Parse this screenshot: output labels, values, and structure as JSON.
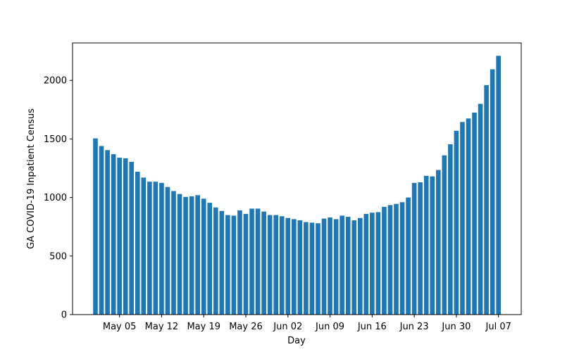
{
  "chart_data": {
    "type": "bar",
    "title": "",
    "xlabel": "Day",
    "ylabel": "GA COVID-19 Inpatient Census",
    "ylim": [
      0,
      2320
    ],
    "yticks": [
      0,
      500,
      1000,
      1500,
      2000
    ],
    "grid": false,
    "bar_color": "#1f77b4",
    "x_start": "2020-05-01",
    "xtick_labels": [
      "May 05",
      "May 12",
      "May 19",
      "May 26",
      "Jun 02",
      "Jun 09",
      "Jun 16",
      "Jun 23",
      "Jun 30",
      "Jul 07"
    ],
    "xtick_dates": [
      "2020-05-05",
      "2020-05-12",
      "2020-05-19",
      "2020-05-26",
      "2020-06-02",
      "2020-06-09",
      "2020-06-16",
      "2020-06-23",
      "2020-06-30",
      "2020-07-07"
    ],
    "values": [
      1505,
      1440,
      1405,
      1370,
      1340,
      1335,
      1305,
      1220,
      1170,
      1135,
      1135,
      1125,
      1090,
      1055,
      1030,
      1005,
      1010,
      1020,
      990,
      955,
      915,
      885,
      850,
      845,
      890,
      860,
      905,
      905,
      880,
      850,
      850,
      840,
      825,
      815,
      805,
      790,
      785,
      780,
      820,
      830,
      815,
      845,
      835,
      805,
      825,
      860,
      870,
      875,
      920,
      935,
      945,
      960,
      1000,
      1125,
      1130,
      1185,
      1180,
      1235,
      1360,
      1455,
      1570,
      1645,
      1675,
      1725,
      1800,
      1960,
      2095,
      2210
    ]
  }
}
